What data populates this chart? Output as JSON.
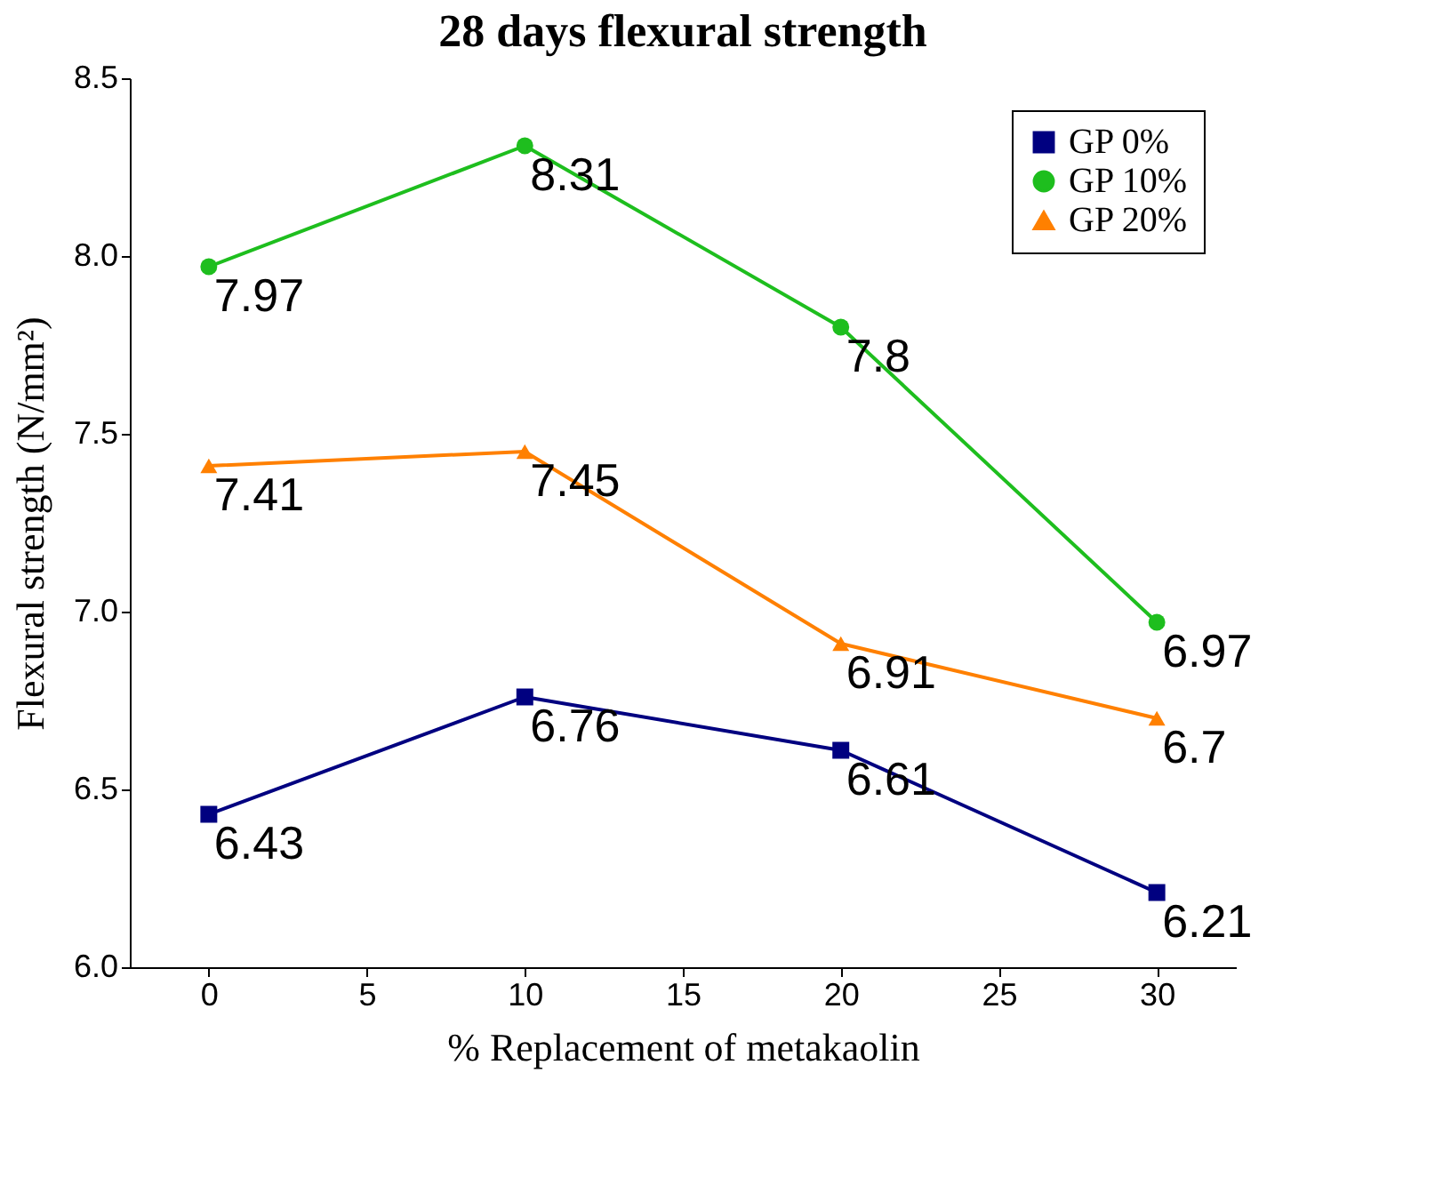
{
  "chart_data": {
    "type": "line",
    "title": "28 days flexural strength",
    "xlabel": "% Replacement of metakaolin",
    "ylabel": "Flexural strength (N/mm²)",
    "x": [
      0,
      10,
      20,
      30
    ],
    "series": [
      {
        "name": "GP 0%",
        "color": "#000080",
        "marker": "square",
        "values": [
          6.43,
          6.76,
          6.61,
          6.21
        ]
      },
      {
        "name": "GP 10%",
        "color": "#1ebe1e",
        "marker": "circle",
        "values": [
          7.97,
          8.31,
          7.8,
          6.97
        ]
      },
      {
        "name": "GP 20%",
        "color": "#ff8000",
        "marker": "triangle",
        "values": [
          7.41,
          7.45,
          6.91,
          6.7
        ]
      }
    ],
    "xlim": [
      -2.5,
      32.5
    ],
    "xticks": [
      0,
      5,
      10,
      15,
      20,
      25,
      30
    ],
    "ylim": [
      6.0,
      8.5
    ],
    "yticks": [
      {
        "value": 6.0,
        "label": "6.0"
      },
      {
        "value": 6.5,
        "label": "6.5"
      },
      {
        "value": 7.0,
        "label": "7.0"
      },
      {
        "value": 7.5,
        "label": "7.5"
      },
      {
        "value": 8.0,
        "label": "8.0"
      },
      {
        "value": 8.5,
        "label": "8.5"
      }
    ],
    "grid": false,
    "legend": "top right",
    "data_labels": true,
    "line_style": "solid"
  }
}
